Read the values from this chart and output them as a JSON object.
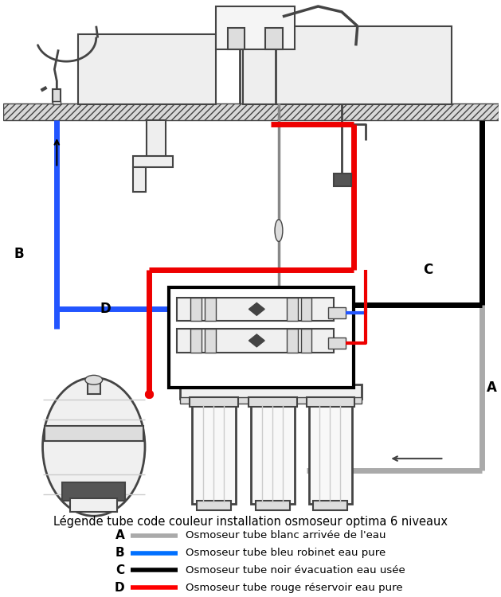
{
  "title": "Légende tube code couleur installation osmoseur optima 6 niveaux",
  "legend_items": [
    {
      "label": "A",
      "desc": "Osmoseur tube blanc arrivée de l'eau",
      "color": "#aaaaaa",
      "lw": 4
    },
    {
      "label": "B",
      "desc": "Osmoseur tube bleu robinet eau pure",
      "color": "#0070ff",
      "lw": 4
    },
    {
      "label": "C",
      "desc": "Osmoseur tube noir évacuation eau usée",
      "color": "#000000",
      "lw": 4
    },
    {
      "label": "D",
      "desc": "Osmoseur tube rouge réservoir eau pure",
      "color": "#ff0000",
      "lw": 4
    }
  ],
  "bg_color": "#ffffff",
  "line_color": "#444444",
  "blue": "#2255ff",
  "red": "#ee0000",
  "black": "#000000",
  "gray": "#888888",
  "light_gray": "#cccccc",
  "mid_gray": "#aaaaaa",
  "dark_gray": "#555555",
  "fill_light": "#f0f0f0",
  "fill_med": "#dddddd",
  "fill_sink": "#e8e8e8"
}
